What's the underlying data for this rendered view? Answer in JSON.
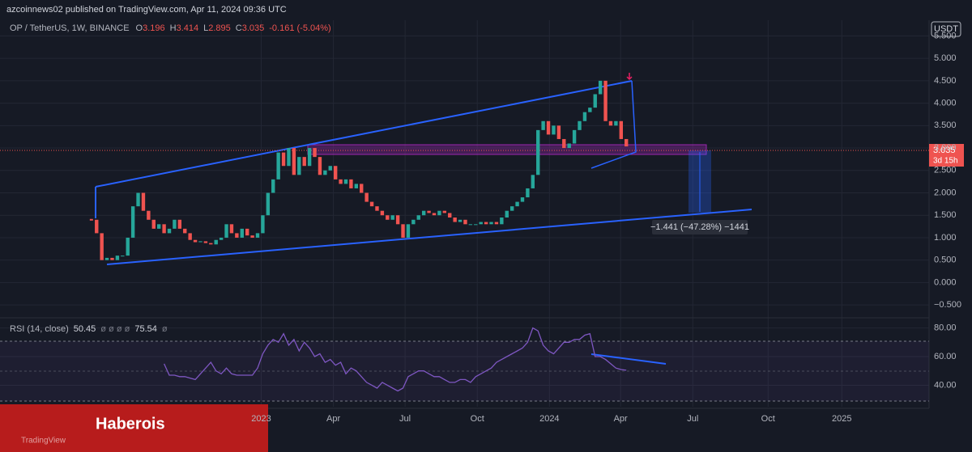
{
  "chart_data": {
    "type": "candlestick",
    "publisher": "azcoinnews02 published on TradingView.com, Apr 11, 2024 09:36 UTC",
    "symbol": "OP / TetherUS, 1W, BINANCE",
    "ohlc_legend": [
      [
        "O",
        "3.196"
      ],
      [
        "H",
        "3.414"
      ],
      [
        "L",
        "2.895"
      ],
      [
        "C",
        "3.035"
      ]
    ],
    "change": "-0.161 (-5.04%)",
    "currency": "USDT",
    "last_price": "3.035",
    "countdown": "3d 15h",
    "measure_label": "−1.441 (−47.28%) −1441",
    "close": [
      1.4,
      1.1,
      0.5,
      0.55,
      0.5,
      0.6,
      0.6,
      1.0,
      1.7,
      2.0,
      1.6,
      1.4,
      1.2,
      1.3,
      1.1,
      1.2,
      1.4,
      1.2,
      1.1,
      0.95,
      0.9,
      0.92,
      0.88,
      0.85,
      0.95,
      1.0,
      1.3,
      1.1,
      1.0,
      1.2,
      1.05,
      1.0,
      1.1,
      1.5,
      2.0,
      2.3,
      2.9,
      2.6,
      3.0,
      2.4,
      2.8,
      2.6,
      3.0,
      2.8,
      2.4,
      2.5,
      2.6,
      2.3,
      2.2,
      2.3,
      2.1,
      2.2,
      2.0,
      1.8,
      1.7,
      1.6,
      1.5,
      1.4,
      1.5,
      1.3,
      1.0,
      1.3,
      1.4,
      1.5,
      1.6,
      1.55,
      1.5,
      1.6,
      1.55,
      1.45,
      1.35,
      1.4,
      1.3,
      1.3,
      1.3,
      1.35,
      1.3,
      1.35,
      1.3,
      1.45,
      1.6,
      1.7,
      1.8,
      1.9,
      2.1,
      2.4,
      3.4,
      3.6,
      3.3,
      3.5,
      3.2,
      3.0,
      3.1,
      3.4,
      3.6,
      3.8,
      3.9,
      4.2,
      4.5,
      3.6,
      3.5,
      3.6,
      3.2,
      3.035
    ],
    "up_color": "#26a69a",
    "down_color": "#ef5350",
    "ylim": [
      -0.75,
      5.85
    ],
    "yticks": [
      {
        "value": 5.5,
        "label": "5.500"
      },
      {
        "value": 5,
        "label": "5.000"
      },
      {
        "value": 4.5,
        "label": "4.500"
      },
      {
        "value": 4,
        "label": "4.000"
      },
      {
        "value": 3.5,
        "label": "3.500"
      },
      {
        "value": 3,
        "label": "3.000"
      },
      {
        "value": 2.5,
        "label": "2.500"
      },
      {
        "value": 2,
        "label": "2.000"
      },
      {
        "value": 1.5,
        "label": "1.500"
      },
      {
        "value": 1,
        "label": "1.000"
      },
      {
        "value": 0.5,
        "label": "0.500"
      },
      {
        "value": 0,
        "label": "0.000"
      },
      {
        "value": -0.5,
        "label": "−0.500"
      }
    ],
    "xlim": [
      -17.6,
      161.3
    ],
    "xticks": [
      {
        "value": 32.7,
        "label": "2023"
      },
      {
        "value": 46.6,
        "label": "Apr"
      },
      {
        "value": 60.4,
        "label": "Jul"
      },
      {
        "value": 74.3,
        "label": "Oct"
      },
      {
        "value": 88.2,
        "label": "2024"
      },
      {
        "value": 101.9,
        "label": "Apr"
      },
      {
        "value": 115.8,
        "label": "Jul"
      },
      {
        "value": 130.3,
        "label": "Oct"
      },
      {
        "value": 144.5,
        "label": "2025"
      }
    ],
    "grid": true,
    "rsi": {
      "label": "RSI (14, close)",
      "legend_values": [
        "50.45",
        "ø ø ø ø",
        "75.54",
        "ø"
      ],
      "color": "#7e57c2",
      "values": [
        null,
        null,
        null,
        null,
        null,
        null,
        null,
        null,
        null,
        null,
        null,
        null,
        null,
        null,
        55,
        47,
        47,
        46,
        46,
        45,
        44,
        48,
        52,
        56,
        50,
        48,
        52,
        48,
        47,
        47,
        47,
        47,
        52,
        62,
        68,
        72,
        70,
        76,
        68,
        72,
        64,
        70,
        66,
        60,
        62,
        56,
        58,
        54,
        56,
        48,
        52,
        50,
        46,
        42,
        40,
        38,
        42,
        40,
        38,
        36,
        38,
        46,
        48,
        50,
        50,
        48,
        46,
        46,
        44,
        42,
        42,
        44,
        44,
        42,
        46,
        48,
        50,
        52,
        56,
        58,
        60,
        62,
        64,
        66,
        70,
        80,
        78,
        68,
        64,
        62,
        66,
        70,
        70,
        72,
        72,
        75,
        76,
        60,
        60,
        58,
        55,
        52,
        51,
        50.45
      ],
      "ylim": [
        25,
        86
      ],
      "yticks": [
        {
          "value": 80,
          "label": "80.00"
        },
        {
          "value": 60,
          "label": "60.00"
        },
        {
          "value": 40,
          "label": "40.00"
        }
      ]
    },
    "banner": "Haberois",
    "watermark": "TradingView"
  }
}
